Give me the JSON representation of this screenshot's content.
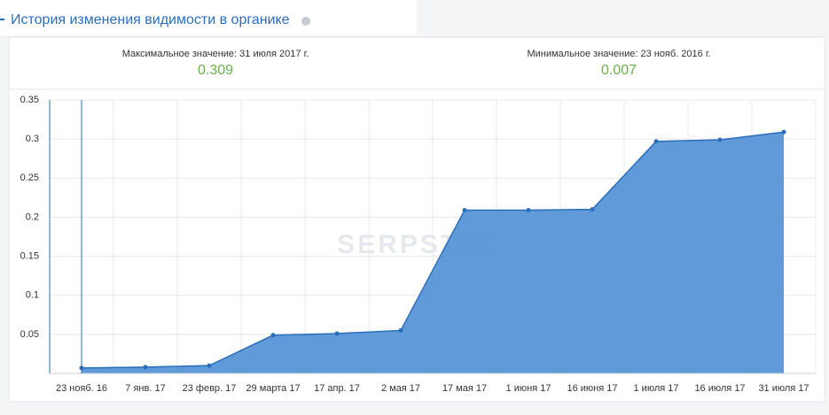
{
  "chart_data": {
    "type": "area",
    "title": "История изменения видимости в органике",
    "watermark": "SERPSTAT",
    "categories": [
      "23 нояб. 16",
      "7 янв. 17",
      "23 февр. 17",
      "29 марта 17",
      "17 апр. 17",
      "2 мая 17",
      "17 мая 17",
      "1 июня 17",
      "16 июня 17",
      "1 июля 17",
      "16 июля 17",
      "31 июля 17"
    ],
    "values": [
      0.007,
      0.008,
      0.01,
      0.049,
      0.051,
      0.055,
      0.209,
      0.209,
      0.21,
      0.297,
      0.299,
      0.309
    ],
    "color": "#4f8fd4",
    "ylim": [
      0,
      0.35
    ],
    "yticks": [
      0.05,
      0.1,
      0.15,
      0.2,
      0.25,
      0.3,
      0.35
    ],
    "grid": true
  },
  "summary": {
    "max_label": "Максимальное значение: 31 июля 2017 г.",
    "max_value": 0.309,
    "min_label": "Минимальное значение: 23 нояб. 2016 г.",
    "min_value": 0.007
  }
}
